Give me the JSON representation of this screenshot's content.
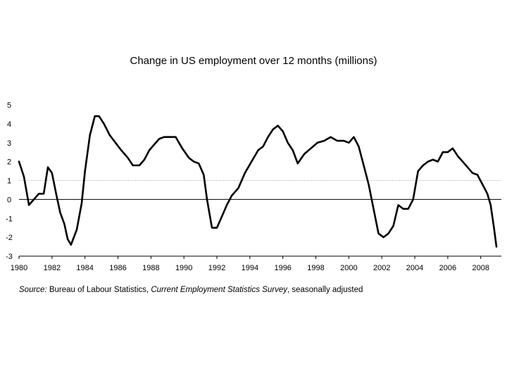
{
  "chart_data": {
    "type": "line",
    "title": "Change in US employment over 12 months (millions)",
    "xlabel": "",
    "ylabel": "",
    "xlim": [
      1980,
      2009.25
    ],
    "ylim": [
      -3,
      5
    ],
    "x_ticks": [
      "1980",
      "1982",
      "1984",
      "1986",
      "1988",
      "1990",
      "1992",
      "1994",
      "1996",
      "1998",
      "2000",
      "2002",
      "2004",
      "2006",
      "2008"
    ],
    "y_ticks": [
      "5",
      "4",
      "3",
      "2",
      "1",
      "0",
      "-1",
      "-2",
      "-3"
    ],
    "reference_lines": [
      {
        "y": 1,
        "style": "dotted"
      },
      {
        "y": 0,
        "style": "solid"
      }
    ],
    "series": [
      {
        "color": "#000000",
        "x": [
          1980.0,
          1980.3,
          1980.6,
          1980.9,
          1981.2,
          1981.5,
          1981.75,
          1982.0,
          1982.25,
          1982.5,
          1982.75,
          1982.95,
          1983.15,
          1983.5,
          1983.8,
          1984.0,
          1984.3,
          1984.6,
          1984.85,
          1985.15,
          1985.5,
          1985.85,
          1986.2,
          1986.6,
          1986.9,
          1987.3,
          1987.6,
          1987.9,
          1988.2,
          1988.5,
          1988.8,
          1989.1,
          1989.5,
          1989.9,
          1990.3,
          1990.6,
          1990.9,
          1991.2,
          1991.4,
          1991.7,
          1992.0,
          1992.3,
          1992.6,
          1992.9,
          1993.3,
          1993.7,
          1994.1,
          1994.5,
          1994.8,
          1995.1,
          1995.4,
          1995.7,
          1996.0,
          1996.3,
          1996.6,
          1996.9,
          1997.3,
          1997.7,
          1998.1,
          1998.5,
          1998.9,
          1999.3,
          1999.7,
          2000.0,
          2000.3,
          2000.6,
          2000.9,
          2001.2,
          2001.5,
          2001.8,
          2002.1,
          2002.4,
          2002.7,
          2003.0,
          2003.3,
          2003.6,
          2003.9,
          2004.2,
          2004.5,
          2004.8,
          2005.1,
          2005.4,
          2005.7,
          2006.0,
          2006.3,
          2006.6,
          2006.9,
          2007.2,
          2007.5,
          2007.8,
          2008.1,
          2008.4,
          2008.6,
          2008.8,
          2008.95
        ],
        "y": [
          2.0,
          1.2,
          -0.3,
          0.0,
          0.3,
          0.3,
          1.7,
          1.4,
          0.3,
          -0.7,
          -1.3,
          -2.1,
          -2.4,
          -1.6,
          -0.2,
          1.5,
          3.4,
          4.4,
          4.4,
          4.0,
          3.4,
          3.0,
          2.6,
          2.2,
          1.8,
          1.8,
          2.1,
          2.6,
          2.9,
          3.2,
          3.3,
          3.3,
          3.3,
          2.7,
          2.2,
          2.0,
          1.9,
          1.3,
          0.0,
          -1.5,
          -1.5,
          -0.9,
          -0.3,
          0.2,
          0.6,
          1.4,
          2.0,
          2.6,
          2.8,
          3.3,
          3.7,
          3.9,
          3.6,
          3.0,
          2.6,
          1.9,
          2.4,
          2.7,
          3.0,
          3.1,
          3.3,
          3.1,
          3.1,
          3.0,
          3.3,
          2.8,
          1.8,
          0.8,
          -0.5,
          -1.8,
          -2.0,
          -1.8,
          -1.4,
          -0.3,
          -0.5,
          -0.5,
          0.0,
          1.5,
          1.8,
          2.0,
          2.1,
          2.0,
          2.5,
          2.5,
          2.7,
          2.3,
          2.0,
          1.7,
          1.4,
          1.3,
          0.8,
          0.3,
          -0.3,
          -1.5,
          -2.5
        ]
      }
    ]
  },
  "source": {
    "lead": "Source:",
    "org": " Bureau of Labour Statistics, ",
    "survey": "Current Employment Statistics Survey",
    "tail": ", seasonally adjusted"
  }
}
